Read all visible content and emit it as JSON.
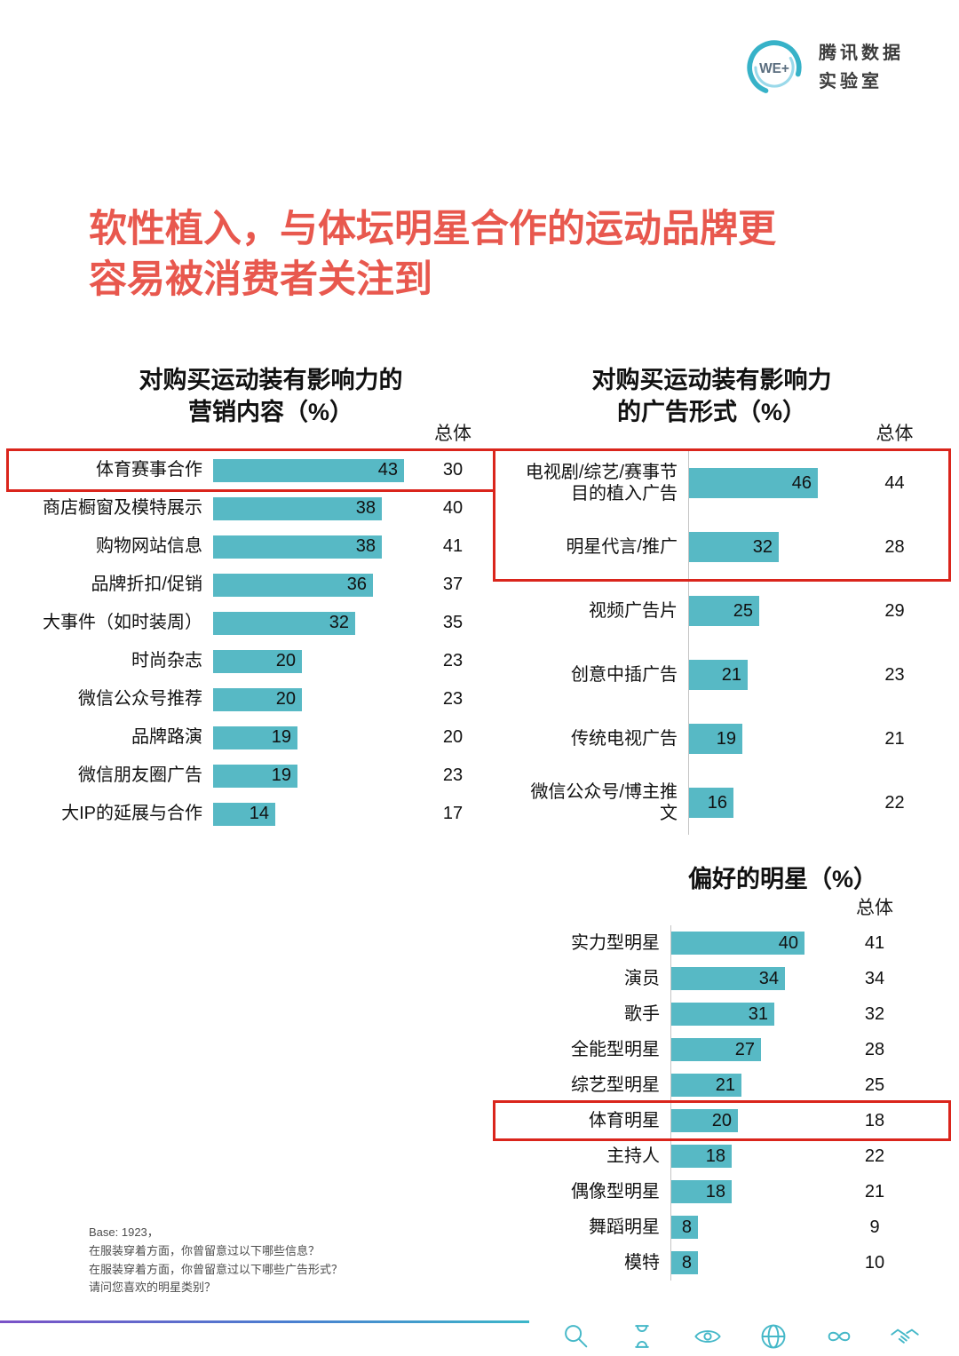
{
  "header": {
    "logo_text": "WE+",
    "brand_line1": "腾讯数据",
    "brand_line2": "实验室"
  },
  "title": {
    "line1": "软性植入，与体坛明星合作的运动品牌更",
    "line2": "容易被消费者关注到"
  },
  "chart_data": [
    {
      "type": "bar",
      "orientation": "horizontal",
      "title": "对购买运动装有影响力的营销内容（%）",
      "title_lines": [
        "对购买运动装有影响力的",
        "营销内容（%）"
      ],
      "total_column_header": "总体",
      "xlim": [
        0,
        50
      ],
      "grid": false,
      "categories": [
        "体育赛事合作",
        "商店橱窗及模特展示",
        "购物网站信息",
        "品牌折扣/促销",
        "大事件（如时装周）",
        "时尚杂志",
        "微信公众号推荐",
        "品牌路演",
        "微信朋友圈广告",
        "大IP的延展与合作"
      ],
      "values": [
        43,
        38,
        38,
        36,
        32,
        20,
        20,
        19,
        19,
        14
      ],
      "totals": [
        30,
        40,
        41,
        37,
        35,
        23,
        23,
        20,
        23,
        17
      ],
      "highlight_rows": [
        0
      ]
    },
    {
      "type": "bar",
      "orientation": "horizontal",
      "title": "对购买运动装有影响力的广告形式（%）",
      "title_lines": [
        "对购买运动装有影响力",
        "的广告形式（%）"
      ],
      "total_column_header": "总体",
      "xlim": [
        0,
        50
      ],
      "grid": false,
      "categories": [
        "电视剧/综艺/赛事节目的植入广告",
        "明星代言/推广",
        "视频广告片",
        "创意中插广告",
        "传统电视广告",
        "微信公众号/博主推文"
      ],
      "values": [
        46,
        32,
        25,
        21,
        19,
        16
      ],
      "totals": [
        44,
        28,
        29,
        23,
        21,
        22
      ],
      "highlight_rows": [
        0,
        1
      ]
    },
    {
      "type": "bar",
      "orientation": "horizontal",
      "title": "偏好的明星（%）",
      "title_lines": [
        "偏好的明星（%）"
      ],
      "total_column_header": "总体",
      "xlim": [
        0,
        50
      ],
      "grid": false,
      "categories": [
        "实力型明星",
        "演员",
        "歌手",
        "全能型明星",
        "综艺型明星",
        "体育明星",
        "主持人",
        "偶像型明星",
        "舞蹈明星",
        "模特"
      ],
      "values": [
        40,
        34,
        31,
        27,
        21,
        20,
        18,
        18,
        8,
        8
      ],
      "totals": [
        41,
        34,
        32,
        28,
        25,
        18,
        22,
        21,
        9,
        10
      ],
      "highlight_rows": [
        5
      ]
    }
  ],
  "footer": {
    "lines": [
      "Base: 1923，",
      "在服装穿着方面，你曾留意过以下哪些信息？",
      "在服装穿着方面，你曾留意过以下哪些广告形式？",
      "请问您喜欢的明星类别？"
    ]
  },
  "icons": [
    "search",
    "hourglass",
    "eye",
    "globe",
    "infinity",
    "handshake"
  ],
  "colors": {
    "bar": "#57b9c5",
    "title_text": "#e8584e",
    "highlight_box": "#da251c",
    "icon": "#45b8c8",
    "gradient_line": [
      "#7b52c7",
      "#4a7fd0",
      "#3cb6c9"
    ]
  }
}
